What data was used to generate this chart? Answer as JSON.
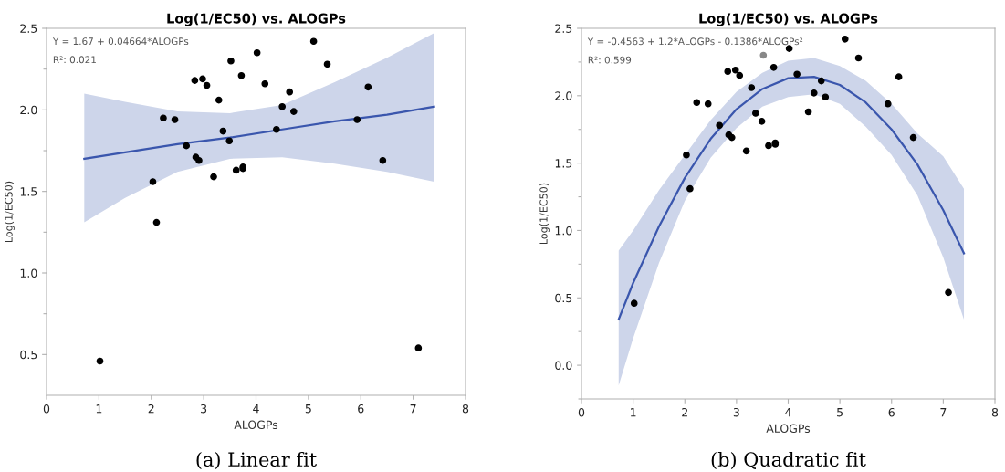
{
  "chart_data": [
    {
      "type": "scatter",
      "title": "Log(1/EC50) vs. ALOGPs",
      "xlabel": "ALOGPs",
      "ylabel": "Log(1/EC50)",
      "xlim": [
        0,
        8
      ],
      "ylim": [
        0.25,
        2.5
      ],
      "xticks": [
        0,
        1,
        2,
        3,
        4,
        5,
        6,
        7,
        8
      ],
      "yticks": [
        {
          "value": 0.5,
          "label": "0.5"
        },
        {
          "value": 0.75,
          "label": null
        },
        {
          "value": 1.0,
          "label": "1.0"
        },
        {
          "value": 1.25,
          "label": null
        },
        {
          "value": 1.5,
          "label": "1.5"
        },
        {
          "value": 1.75,
          "label": null
        },
        {
          "value": 2.0,
          "label": "2.0"
        },
        {
          "value": 2.25,
          "label": null
        },
        {
          "value": 2.5,
          "label": "2.5"
        }
      ],
      "grid": false,
      "legend": false,
      "marker": "circle",
      "annotations": [
        "Y = 1.67 + 0.04664*ALOGPs",
        "R²: 0.021",
        "(a) Linear fit"
      ],
      "series": [
        {
          "color": "#000000",
          "x": [
            1.02,
            2.03,
            2.1,
            2.23,
            2.45,
            2.67,
            2.83,
            2.85,
            2.91,
            2.98,
            3.06,
            3.19,
            3.29,
            3.37,
            3.49,
            3.52,
            3.62,
            3.72,
            3.75,
            3.75,
            4.02,
            4.17,
            4.39,
            4.5,
            4.64,
            4.72,
            5.1,
            5.36,
            5.93,
            6.14,
            6.42,
            7.1
          ],
          "values": [
            0.46,
            1.56,
            1.31,
            1.95,
            1.94,
            1.78,
            2.18,
            1.71,
            1.69,
            2.19,
            2.15,
            1.59,
            2.06,
            1.87,
            1.81,
            2.3,
            1.63,
            2.21,
            1.65,
            1.64,
            2.35,
            2.16,
            1.88,
            2.02,
            2.11,
            1.99,
            2.42,
            2.28,
            1.94,
            2.14,
            1.69,
            0.54
          ]
        },
        {
          "type": "line",
          "color": "#3a56ad",
          "line_style": "solid",
          "marker": "none",
          "x": [
            0.72,
            1.5,
            2.5,
            3.5,
            4.5,
            5.5,
            6.5,
            7.4
          ],
          "values": [
            1.7,
            1.74,
            1.79,
            1.83,
            1.88,
            1.93,
            1.97,
            2.02
          ],
          "upper": [
            2.1,
            2.05,
            1.99,
            1.98,
            2.03,
            2.17,
            2.32,
            2.47
          ],
          "lower": [
            1.31,
            1.46,
            1.62,
            1.7,
            1.71,
            1.67,
            1.62,
            1.56
          ]
        }
      ]
    },
    {
      "type": "scatter",
      "title": "Log(1/EC50) vs. ALOGPs",
      "xlabel": "ALOGPs",
      "ylabel": "Log(1/EC50)",
      "xlim": [
        0,
        8
      ],
      "ylim": [
        -0.25,
        2.5
      ],
      "xticks": [
        0,
        1,
        2,
        3,
        4,
        5,
        6,
        7,
        8
      ],
      "yticks": [
        {
          "value": -0.25,
          "label": null
        },
        {
          "value": 0.0,
          "label": "0.0"
        },
        {
          "value": 0.25,
          "label": null
        },
        {
          "value": 0.5,
          "label": "0.5"
        },
        {
          "value": 0.75,
          "label": null
        },
        {
          "value": 1.0,
          "label": "1.0"
        },
        {
          "value": 1.25,
          "label": null
        },
        {
          "value": 1.5,
          "label": "1.5"
        },
        {
          "value": 1.75,
          "label": null
        },
        {
          "value": 2.0,
          "label": "2.0"
        },
        {
          "value": 2.25,
          "label": null
        },
        {
          "value": 2.5,
          "label": "2.5"
        }
      ],
      "grid": false,
      "legend": false,
      "marker": "circle",
      "annotations": [
        "Y = -0.4563 + 1.2*ALOGPs - 0.1386*ALOGPs²",
        "R²: 0.599",
        "(b) Quadratic fit"
      ],
      "series": [
        {
          "colors": [
            "#000000",
            "#000000",
            "#000000",
            "#000000",
            "#000000",
            "#000000",
            "#000000",
            "#000000",
            "#000000",
            "#000000",
            "#000000",
            "#000000",
            "#000000",
            "#000000",
            "#000000",
            "#888888",
            "#000000",
            "#000000",
            "#000000",
            "#000000",
            "#000000",
            "#000000",
            "#000000",
            "#000000",
            "#000000",
            "#000000",
            "#000000",
            "#000000",
            "#000000",
            "#000000",
            "#000000",
            "#000000"
          ],
          "x": [
            1.02,
            2.03,
            2.1,
            2.23,
            2.45,
            2.67,
            2.83,
            2.85,
            2.91,
            2.98,
            3.06,
            3.19,
            3.29,
            3.37,
            3.49,
            3.52,
            3.62,
            3.72,
            3.75,
            3.75,
            4.02,
            4.17,
            4.39,
            4.5,
            4.64,
            4.72,
            5.1,
            5.36,
            5.93,
            6.14,
            6.42,
            7.1
          ],
          "values": [
            0.46,
            1.56,
            1.31,
            1.95,
            1.94,
            1.78,
            2.18,
            1.71,
            1.69,
            2.19,
            2.15,
            1.59,
            2.06,
            1.87,
            1.81,
            2.3,
            1.63,
            2.21,
            1.65,
            1.64,
            2.35,
            2.16,
            1.88,
            2.02,
            2.11,
            1.99,
            2.42,
            2.28,
            1.94,
            2.14,
            1.69,
            0.54
          ]
        },
        {
          "type": "line",
          "color": "#3a56ad",
          "line_style": "solid",
          "marker": "none",
          "x": [
            0.72,
            1,
            1.5,
            2,
            2.5,
            3,
            3.5,
            4,
            4.5,
            5,
            5.5,
            6,
            6.5,
            7,
            7.4
          ],
          "values": [
            0.34,
            0.61,
            1.03,
            1.39,
            1.68,
            1.9,
            2.05,
            2.13,
            2.14,
            2.08,
            1.95,
            1.75,
            1.49,
            1.15,
            0.83
          ],
          "upper": [
            0.85,
            1.0,
            1.3,
            1.56,
            1.82,
            2.03,
            2.17,
            2.26,
            2.28,
            2.22,
            2.11,
            1.94,
            1.72,
            1.55,
            1.31
          ],
          "lower": [
            -0.15,
            0.2,
            0.76,
            1.22,
            1.54,
            1.76,
            1.92,
            1.99,
            2.01,
            1.94,
            1.77,
            1.56,
            1.26,
            0.8,
            0.34
          ]
        }
      ]
    }
  ]
}
